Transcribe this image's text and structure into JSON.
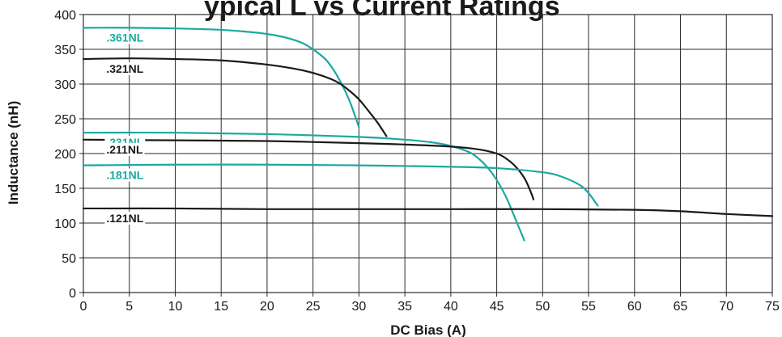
{
  "chart_data": {
    "type": "line",
    "title_visible_fragment": "ypical L vs Current Ratings",
    "xlabel": "DC Bias (A)",
    "ylabel": "Inductance (nH)",
    "xlim": [
      0,
      75
    ],
    "ylim": [
      0,
      400
    ],
    "x_ticks": [
      0,
      5,
      10,
      15,
      20,
      25,
      30,
      35,
      40,
      45,
      50,
      55,
      60,
      65,
      70,
      75
    ],
    "y_ticks": [
      0,
      50,
      100,
      150,
      200,
      250,
      300,
      350,
      400
    ],
    "grid": true,
    "legend": "inline labels near left of each curve",
    "colors": {
      "teal": "#1aa9a0",
      "black": "#1a1a1a",
      "grid": "#2a2a2a"
    },
    "series": [
      {
        "name": ".361NL",
        "color": "#1aa9a0",
        "points": [
          [
            0,
            381
          ],
          [
            5,
            381
          ],
          [
            10,
            380
          ],
          [
            15,
            378
          ],
          [
            18,
            375
          ],
          [
            20,
            372
          ],
          [
            22,
            367
          ],
          [
            24,
            358
          ],
          [
            26,
            340
          ],
          [
            27,
            325
          ],
          [
            28,
            303
          ],
          [
            29,
            275
          ],
          [
            30,
            238
          ]
        ]
      },
      {
        "name": ".321NL",
        "color": "#1a1a1a",
        "points": [
          [
            0,
            336
          ],
          [
            5,
            337
          ],
          [
            10,
            336
          ],
          [
            15,
            334
          ],
          [
            20,
            328
          ],
          [
            23,
            322
          ],
          [
            25,
            316
          ],
          [
            27,
            307
          ],
          [
            28,
            300
          ],
          [
            29,
            290
          ],
          [
            30,
            278
          ],
          [
            31,
            262
          ],
          [
            32,
            245
          ],
          [
            33,
            225
          ]
        ]
      },
      {
        "name": ".231NL",
        "color": "#1aa9a0",
        "points": [
          [
            0,
            230
          ],
          [
            10,
            230
          ],
          [
            20,
            228
          ],
          [
            30,
            224
          ],
          [
            35,
            220
          ],
          [
            38,
            216
          ],
          [
            40,
            211
          ],
          [
            42,
            202
          ],
          [
            43,
            193
          ],
          [
            44,
            180
          ],
          [
            45,
            162
          ],
          [
            46,
            138
          ],
          [
            47,
            107
          ],
          [
            48,
            75
          ]
        ]
      },
      {
        "name": ".211NL",
        "color": "#1a1a1a",
        "points": [
          [
            0,
            220
          ],
          [
            10,
            219
          ],
          [
            20,
            218
          ],
          [
            30,
            215
          ],
          [
            35,
            213
          ],
          [
            40,
            210
          ],
          [
            43,
            206
          ],
          [
            45,
            200
          ],
          [
            46,
            193
          ],
          [
            47,
            182
          ],
          [
            48,
            165
          ],
          [
            48.7,
            145
          ],
          [
            49,
            134
          ]
        ]
      },
      {
        "name": ".181NL",
        "color": "#1aa9a0",
        "points": [
          [
            0,
            183
          ],
          [
            10,
            184
          ],
          [
            20,
            184
          ],
          [
            30,
            183
          ],
          [
            40,
            181
          ],
          [
            45,
            179
          ],
          [
            50,
            173
          ],
          [
            52,
            167
          ],
          [
            54,
            155
          ],
          [
            55,
            143
          ],
          [
            56,
            125
          ]
        ]
      },
      {
        "name": ".121NL",
        "color": "#1a1a1a",
        "points": [
          [
            0,
            121
          ],
          [
            10,
            121
          ],
          [
            20,
            120
          ],
          [
            30,
            120
          ],
          [
            40,
            120
          ],
          [
            50,
            120
          ],
          [
            60,
            119
          ],
          [
            65,
            117
          ],
          [
            70,
            113
          ],
          [
            75,
            110
          ]
        ]
      }
    ]
  }
}
